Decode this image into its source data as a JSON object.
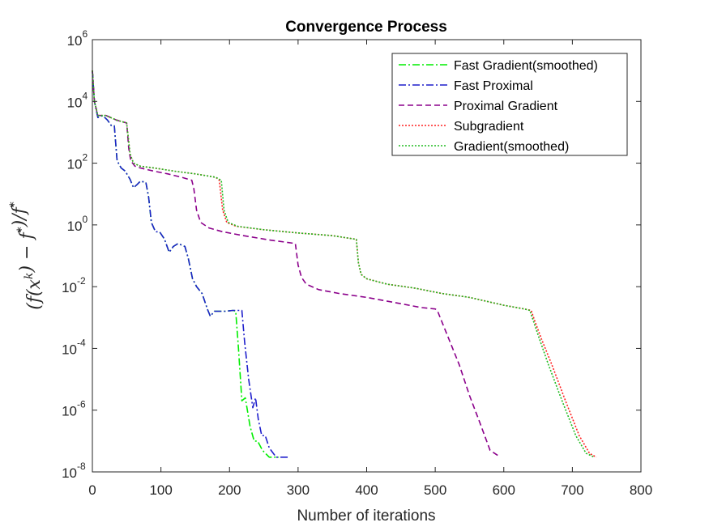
{
  "chart_data": {
    "type": "line",
    "title": "Convergence Process",
    "xlabel": "Number of iterations",
    "ylabel": "(f(x^k) − f*)/f*",
    "xlim": [
      0,
      800
    ],
    "ylim": [
      1e-08,
      1000000.0
    ],
    "yscale": "log",
    "xticks": [
      "0",
      "100",
      "200",
      "300",
      "400",
      "500",
      "600",
      "700",
      "800"
    ],
    "yticks": [
      {
        "base": "10",
        "exp": "-8",
        "value": 1e-08
      },
      {
        "base": "10",
        "exp": "-6",
        "value": 1e-06
      },
      {
        "base": "10",
        "exp": "-4",
        "value": 0.0001
      },
      {
        "base": "10",
        "exp": "-2",
        "value": 0.01
      },
      {
        "base": "10",
        "exp": "0",
        "value": 1
      },
      {
        "base": "10",
        "exp": "2",
        "value": 100.0
      },
      {
        "base": "10",
        "exp": "4",
        "value": 10000.0
      },
      {
        "base": "10",
        "exp": "6",
        "value": 1000000.0
      }
    ],
    "grid": false,
    "legend_position": "top-right",
    "series": [
      {
        "name": "Fast Gradient(smoothed)",
        "color": "#00ee00",
        "style": "dashdot",
        "points": [
          [
            0,
            100000
          ],
          [
            3,
            10000
          ],
          [
            8,
            3000
          ],
          [
            15,
            3500
          ],
          [
            22,
            2500
          ],
          [
            28,
            1600
          ],
          [
            32,
            1600
          ],
          [
            36,
            120
          ],
          [
            42,
            70
          ],
          [
            48,
            55
          ],
          [
            55,
            30
          ],
          [
            60,
            16
          ],
          [
            65,
            20
          ],
          [
            70,
            26
          ],
          [
            78,
            24
          ],
          [
            82,
            8
          ],
          [
            86,
            1.2
          ],
          [
            92,
            0.6
          ],
          [
            98,
            0.6
          ],
          [
            105,
            0.35
          ],
          [
            112,
            0.13
          ],
          [
            118,
            0.2
          ],
          [
            125,
            0.25
          ],
          [
            135,
            0.2
          ],
          [
            140,
            0.08
          ],
          [
            146,
            0.018
          ],
          [
            152,
            0.01
          ],
          [
            160,
            0.006
          ],
          [
            168,
            0.0018
          ],
          [
            172,
            0.0011
          ],
          [
            178,
            0.0016
          ],
          [
            185,
            0.0016
          ],
          [
            195,
            0.0016
          ],
          [
            205,
            0.0017
          ],
          [
            209,
            0.0016
          ],
          [
            213,
            0.0001
          ],
          [
            218,
            2e-06
          ],
          [
            223,
            2.5e-06
          ],
          [
            226,
            1e-06
          ],
          [
            230,
            3e-07
          ],
          [
            236,
            1e-07
          ],
          [
            241,
            1e-07
          ],
          [
            248,
            5e-08
          ],
          [
            258,
            3e-08
          ],
          [
            272,
            3e-08
          ]
        ]
      },
      {
        "name": "Fast Proximal",
        "color": "#1f1fcc",
        "style": "dashdot",
        "points": [
          [
            0,
            100000
          ],
          [
            3,
            10000
          ],
          [
            8,
            3000
          ],
          [
            15,
            3500
          ],
          [
            22,
            2500
          ],
          [
            28,
            1600
          ],
          [
            32,
            1600
          ],
          [
            36,
            120
          ],
          [
            42,
            70
          ],
          [
            48,
            55
          ],
          [
            55,
            30
          ],
          [
            60,
            16
          ],
          [
            65,
            20
          ],
          [
            70,
            26
          ],
          [
            78,
            24
          ],
          [
            82,
            8
          ],
          [
            86,
            1.2
          ],
          [
            92,
            0.6
          ],
          [
            98,
            0.6
          ],
          [
            105,
            0.35
          ],
          [
            112,
            0.13
          ],
          [
            118,
            0.2
          ],
          [
            125,
            0.25
          ],
          [
            135,
            0.2
          ],
          [
            140,
            0.08
          ],
          [
            146,
            0.018
          ],
          [
            152,
            0.01
          ],
          [
            160,
            0.006
          ],
          [
            168,
            0.0018
          ],
          [
            172,
            0.0011
          ],
          [
            178,
            0.0016
          ],
          [
            185,
            0.0016
          ],
          [
            195,
            0.0016
          ],
          [
            205,
            0.0017
          ],
          [
            218,
            0.0017
          ],
          [
            222,
            0.00016
          ],
          [
            228,
            1e-05
          ],
          [
            234,
            1.2e-06
          ],
          [
            238,
            2.5e-06
          ],
          [
            242,
            5e-07
          ],
          [
            247,
            1.5e-07
          ],
          [
            252,
            1.5e-07
          ],
          [
            258,
            6e-08
          ],
          [
            268,
            3e-08
          ],
          [
            285,
            3e-08
          ]
        ]
      },
      {
        "name": "Proximal Gradient",
        "color": "#8b008b",
        "style": "dashed",
        "points": [
          [
            0,
            100000
          ],
          [
            3,
            10000
          ],
          [
            8,
            3500
          ],
          [
            20,
            3500
          ],
          [
            35,
            2500
          ],
          [
            50,
            2000
          ],
          [
            53,
            300
          ],
          [
            56,
            120
          ],
          [
            62,
            80
          ],
          [
            70,
            70
          ],
          [
            90,
            55
          ],
          [
            110,
            45
          ],
          [
            130,
            35
          ],
          [
            145,
            28
          ],
          [
            148,
            15
          ],
          [
            152,
            3
          ],
          [
            158,
            1.2
          ],
          [
            170,
            0.8
          ],
          [
            190,
            0.6
          ],
          [
            220,
            0.45
          ],
          [
            260,
            0.32
          ],
          [
            296,
            0.25
          ],
          [
            300,
            0.05
          ],
          [
            305,
            0.02
          ],
          [
            312,
            0.012
          ],
          [
            330,
            0.008
          ],
          [
            360,
            0.006
          ],
          [
            400,
            0.0045
          ],
          [
            450,
            0.0028
          ],
          [
            480,
            0.0021
          ],
          [
            500,
            0.0019
          ],
          [
            503,
            0.0017
          ],
          [
            510,
            0.0007
          ],
          [
            520,
            0.0002
          ],
          [
            535,
            3e-05
          ],
          [
            550,
            3e-06
          ],
          [
            565,
            4e-07
          ],
          [
            580,
            5e-08
          ],
          [
            595,
            3e-08
          ]
        ]
      },
      {
        "name": "Subgradient",
        "color": "#ff2020",
        "style": "dotted",
        "points": [
          [
            0,
            100000
          ],
          [
            3,
            10000
          ],
          [
            8,
            3500
          ],
          [
            20,
            3500
          ],
          [
            35,
            2500
          ],
          [
            50,
            2000
          ],
          [
            55,
            200
          ],
          [
            60,
            100
          ],
          [
            70,
            80
          ],
          [
            90,
            70
          ],
          [
            120,
            55
          ],
          [
            150,
            45
          ],
          [
            180,
            35
          ],
          [
            185,
            28
          ],
          [
            190,
            3
          ],
          [
            196,
            1.2
          ],
          [
            210,
            0.9
          ],
          [
            250,
            0.7
          ],
          [
            300,
            0.55
          ],
          [
            350,
            0.45
          ],
          [
            385,
            0.34
          ],
          [
            388,
            0.06
          ],
          [
            392,
            0.025
          ],
          [
            400,
            0.018
          ],
          [
            430,
            0.012
          ],
          [
            470,
            0.009
          ],
          [
            510,
            0.006
          ],
          [
            550,
            0.0045
          ],
          [
            600,
            0.0025
          ],
          [
            630,
            0.0019
          ],
          [
            640,
            0.0017
          ],
          [
            645,
            0.0008
          ],
          [
            655,
            0.0002
          ],
          [
            670,
            3e-05
          ],
          [
            690,
            2e-06
          ],
          [
            710,
            1.5e-07
          ],
          [
            725,
            4e-08
          ],
          [
            735,
            3e-08
          ]
        ]
      },
      {
        "name": "Gradient(smoothed)",
        "color": "#22bb22",
        "style": "dotted",
        "points": [
          [
            0,
            100000
          ],
          [
            3,
            10000
          ],
          [
            8,
            3500
          ],
          [
            20,
            3500
          ],
          [
            35,
            2500
          ],
          [
            50,
            2000
          ],
          [
            55,
            200
          ],
          [
            60,
            100
          ],
          [
            70,
            80
          ],
          [
            90,
            70
          ],
          [
            120,
            55
          ],
          [
            150,
            45
          ],
          [
            180,
            35
          ],
          [
            188,
            28
          ],
          [
            192,
            3
          ],
          [
            198,
            1.2
          ],
          [
            212,
            0.9
          ],
          [
            250,
            0.7
          ],
          [
            300,
            0.55
          ],
          [
            350,
            0.45
          ],
          [
            385,
            0.34
          ],
          [
            388,
            0.06
          ],
          [
            392,
            0.025
          ],
          [
            400,
            0.018
          ],
          [
            430,
            0.012
          ],
          [
            470,
            0.009
          ],
          [
            510,
            0.006
          ],
          [
            550,
            0.0045
          ],
          [
            600,
            0.0025
          ],
          [
            630,
            0.0019
          ],
          [
            638,
            0.0017
          ],
          [
            643,
            0.0008
          ],
          [
            652,
            0.0002
          ],
          [
            665,
            3e-05
          ],
          [
            685,
            2e-06
          ],
          [
            705,
            1.5e-07
          ],
          [
            720,
            4e-08
          ],
          [
            732,
            3e-08
          ]
        ]
      }
    ]
  }
}
